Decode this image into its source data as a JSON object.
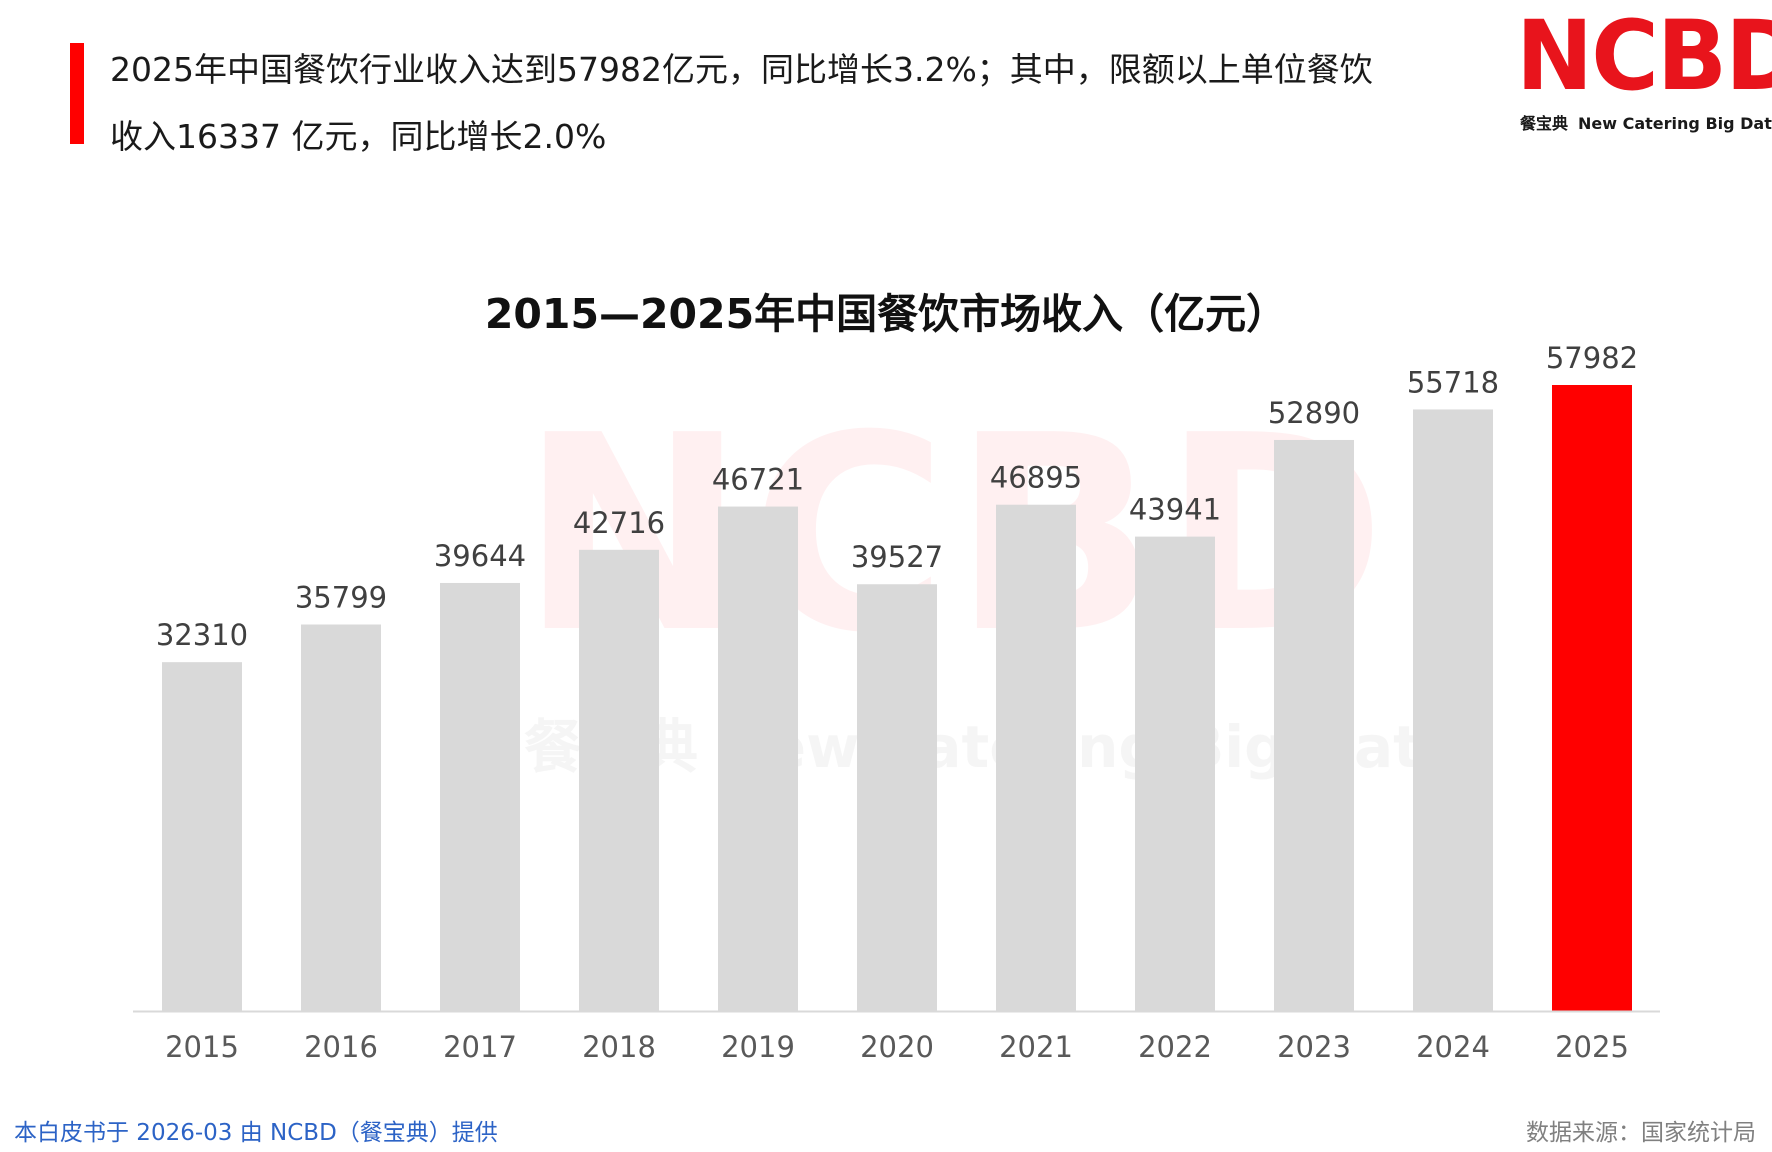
{
  "headline": {
    "line1": "2025年中国餐饮行业收入达到57982亿元，同比增长3.2%；其中，限额以上单位餐饮",
    "line2": "收入16337 亿元，同比增长2.0%"
  },
  "logo": {
    "mark": "NCBD",
    "sub_cn": "餐宝典",
    "sub_en": "New Catering Big Data"
  },
  "watermark": {
    "mark": "NCBD",
    "sub": "餐宝典  New Catering Big Data"
  },
  "chart_data": {
    "type": "bar",
    "title": "2015—2025年中国餐饮市场收入（亿元）",
    "xlabel": "",
    "ylabel": "",
    "categories": [
      "2015",
      "2016",
      "2017",
      "2018",
      "2019",
      "2020",
      "2021",
      "2022",
      "2023",
      "2024",
      "2025"
    ],
    "values": [
      32310,
      35799,
      39644,
      42716,
      46721,
      39527,
      46895,
      43941,
      52890,
      55718,
      57982
    ],
    "ylim": [
      0,
      57982
    ],
    "grid": false,
    "data_labels": true,
    "colors": {
      "default_bar": "#d9d9d9",
      "highlight_bar": "#ff0000",
      "axis_line": "#d9d9d9",
      "tick_label": "#595959",
      "data_label": "#404040"
    },
    "highlight_category": "2025"
  },
  "footer": {
    "left": "本白皮书于 2026-03 由 NCBD（餐宝典）提供",
    "right": "数据来源：国家统计局"
  },
  "colors": {
    "accent": "#ff0000",
    "brand": "#e8141c",
    "footer_link": "#2c63c6"
  }
}
